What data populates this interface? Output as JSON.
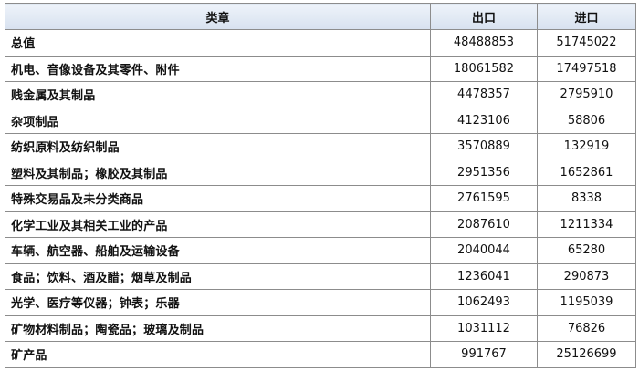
{
  "table": {
    "headers": [
      "类章",
      "出口",
      "进口"
    ],
    "rows": [
      {
        "category": "总值",
        "export": "48488853",
        "import": "51745022"
      },
      {
        "category": "机电、音像设备及其零件、附件",
        "export": "18061582",
        "import": "17497518"
      },
      {
        "category": "贱金属及其制品",
        "export": "4478357",
        "import": "2795910"
      },
      {
        "category": "杂项制品",
        "export": "4123106",
        "import": "58806"
      },
      {
        "category": "纺织原料及纺织制品",
        "export": "3570889",
        "import": "132919"
      },
      {
        "category": "塑料及其制品；橡胶及其制品",
        "export": "2951356",
        "import": "1652861"
      },
      {
        "category": "特殊交易品及未分类商品",
        "export": "2761595",
        "import": "8338"
      },
      {
        "category": "化学工业及其相关工业的产品",
        "export": "2087610",
        "import": "1211334"
      },
      {
        "category": "车辆、航空器、船舶及运输设备",
        "export": "2040044",
        "import": "65280"
      },
      {
        "category": "食品；饮料、酒及醋；烟草及制品",
        "export": "1236041",
        "import": "290873"
      },
      {
        "category": "光学、医疗等仪器；钟表；乐器",
        "export": "1062493",
        "import": "1195039"
      },
      {
        "category": "矿物材料制品；陶瓷品；玻璃及制品",
        "export": "1031112",
        "import": "76826"
      },
      {
        "category": "矿产品",
        "export": "991767",
        "import": "25126699"
      }
    ]
  }
}
